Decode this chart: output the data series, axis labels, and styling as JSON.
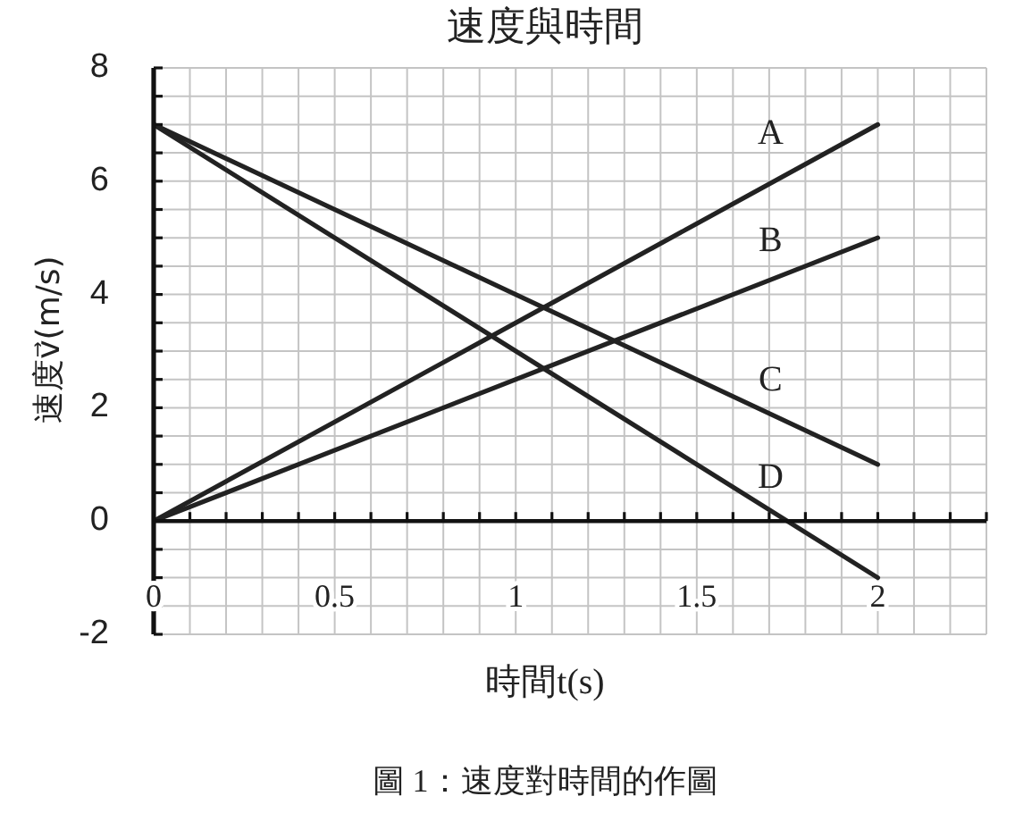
{
  "chart_data": {
    "type": "line",
    "title": "速度與時間",
    "xlabel": "時間t(s)",
    "ylabel": "速度v⃗(m/s)",
    "annotations": [
      "圖 1：速度對時間的作圖"
    ],
    "x": [
      0,
      2
    ],
    "series": [
      {
        "name": "A",
        "color": "#222222",
        "values": [
          0,
          7
        ]
      },
      {
        "name": "B",
        "color": "#222222",
        "values": [
          0,
          5
        ]
      },
      {
        "name": "C",
        "color": "#222222",
        "values": [
          7,
          1
        ]
      },
      {
        "name": "D",
        "color": "#222222",
        "values": [
          7,
          -1
        ]
      }
    ],
    "xlim": [
      0,
      2.3
    ],
    "xticks": [
      0,
      {
        "value": 0.1,
        "label": null
      },
      {
        "value": 0.2,
        "label": null
      },
      {
        "value": 0.3,
        "label": null
      },
      {
        "value": 0.4,
        "label": null
      },
      0.5,
      {
        "value": 0.6,
        "label": null
      },
      {
        "value": 0.7,
        "label": null
      },
      {
        "value": 0.8,
        "label": null
      },
      {
        "value": 0.9,
        "label": null
      },
      1,
      {
        "value": 1.1,
        "label": null
      },
      {
        "value": 1.2,
        "label": null
      },
      {
        "value": 1.3,
        "label": null
      },
      {
        "value": 1.4,
        "label": null
      },
      1.5,
      {
        "value": 1.6,
        "label": null
      },
      {
        "value": 1.7,
        "label": null
      },
      {
        "value": 1.8,
        "label": null
      },
      {
        "value": 1.9,
        "label": null
      },
      2,
      {
        "value": 2.1,
        "label": null
      },
      {
        "value": 2.2,
        "label": null
      },
      {
        "value": 2.3,
        "label": null
      }
    ],
    "ylim": [
      -2,
      8
    ],
    "yticks": [
      -2,
      {
        "value": -1.5,
        "label": null
      },
      {
        "value": -1,
        "label": null
      },
      {
        "value": -0.5,
        "label": null
      },
      0,
      {
        "value": 0.5,
        "label": null
      },
      {
        "value": 1,
        "label": null
      },
      {
        "value": 1.5,
        "label": null
      },
      2,
      {
        "value": 2.5,
        "label": null
      },
      {
        "value": 3,
        "label": null
      },
      {
        "value": 3.5,
        "label": null
      },
      4,
      {
        "value": 4.5,
        "label": null
      },
      {
        "value": 5,
        "label": null
      },
      {
        "value": 5.5,
        "label": null
      },
      6,
      {
        "value": 6.5,
        "label": null
      },
      {
        "value": 7,
        "label": null
      },
      {
        "value": 7.5,
        "label": null
      },
      8
    ],
    "grid": true
  }
}
